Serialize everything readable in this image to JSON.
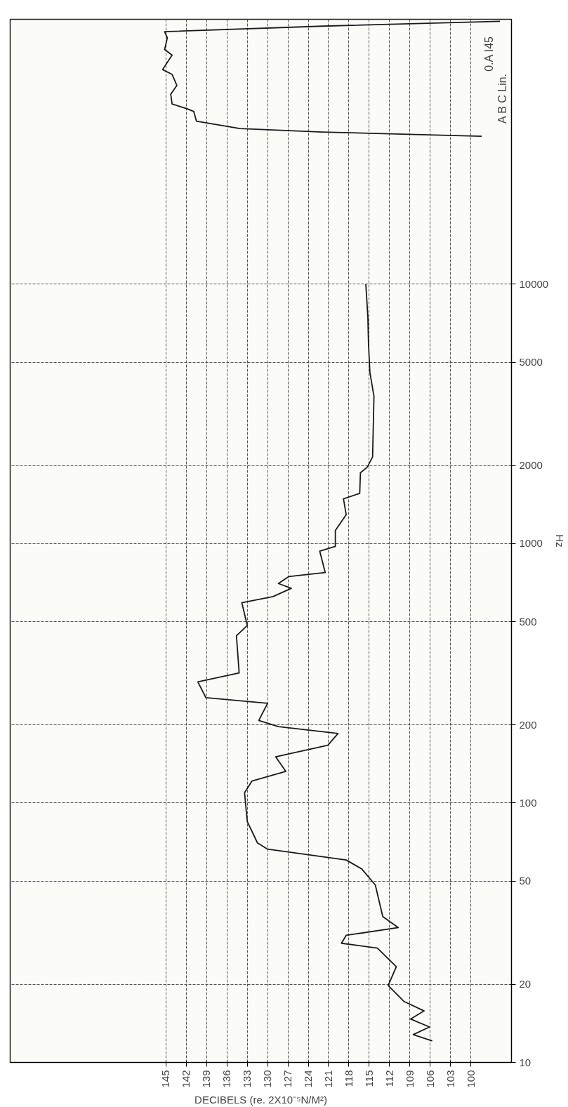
{
  "chart_data": {
    "type": "line",
    "orientation": "horizontal",
    "log": "y",
    "xlabel": "DECIBELS (re. 2X10⁻⁵N/M²)",
    "ylabel": "Hz",
    "annotations": [
      "0.A I45",
      "A B C Lin."
    ],
    "xlim": [
      168,
      94
    ],
    "xticks": [
      145,
      142,
      139,
      136,
      133,
      130,
      127,
      124,
      121,
      118,
      115,
      112,
      109,
      106,
      103,
      100
    ],
    "ylim": [
      10,
      105000
    ],
    "yticks": [
      10,
      20,
      50,
      100,
      200,
      500,
      1000,
      2000,
      5000,
      10000
    ],
    "grid": true,
    "series": [
      {
        "color": "#1a1a1a",
        "x": [
          12.1,
          12.8,
          13.7,
          14.7,
          15.8,
          17.2,
          19.8,
          23.4,
          27.6,
          28.8,
          30.9,
          33.1,
          36.5,
          48.3,
          55.7,
          60.3,
          66.4,
          70.2,
          84.8,
          109.6,
          121.6,
          132.4,
          150.6,
          167.1,
          185.3,
          197,
          208.1,
          242.4,
          254.6,
          293,
          317.1,
          441.3,
          483.5,
          591.5,
          624.9,
          672.6,
          701.9,
          746,
          774,
          935,
          976,
          1123,
          1293,
          1488,
          1562,
          1876,
          1970,
          2159,
          3694,
          4576,
          5843,
          7459,
          10000
        ],
        "values": [
          105.7,
          108.5,
          106.1,
          108.9,
          106.9,
          109.9,
          112.2,
          111.0,
          113.8,
          119.1,
          118.4,
          110.7,
          113.0,
          114.1,
          116.1,
          118.4,
          130.0,
          131.5,
          133.0,
          133.4,
          132.3,
          127.3,
          128.8,
          121.1,
          119.6,
          128.4,
          131.3,
          130.0,
          139.1,
          140.3,
          134.2,
          134.6,
          133.0,
          133.8,
          129.2,
          126.5,
          128.4,
          126.9,
          121.5,
          122.3,
          120.0,
          120.0,
          118.4,
          118.8,
          116.4,
          116.3,
          115.3,
          114.5,
          114.3,
          114.9,
          115.1,
          115.2,
          115.5
        ]
      },
      {
        "color": "#1a1a1a",
        "x": [
          103100,
          98800,
          94100,
          89100,
          80300,
          76400,
          67200,
          64400,
          58400,
          54000,
          49500,
          47500,
          46300,
          42500,
          39800,
          38600,
          37200
        ],
        "values": [
          95.7,
          121.9,
          145.2,
          144.8,
          145.2,
          144.1,
          145.5,
          144.1,
          143.4,
          144.3,
          144.1,
          141.9,
          140.9,
          140.5,
          134.1,
          121.9,
          98.4
        ]
      }
    ]
  }
}
